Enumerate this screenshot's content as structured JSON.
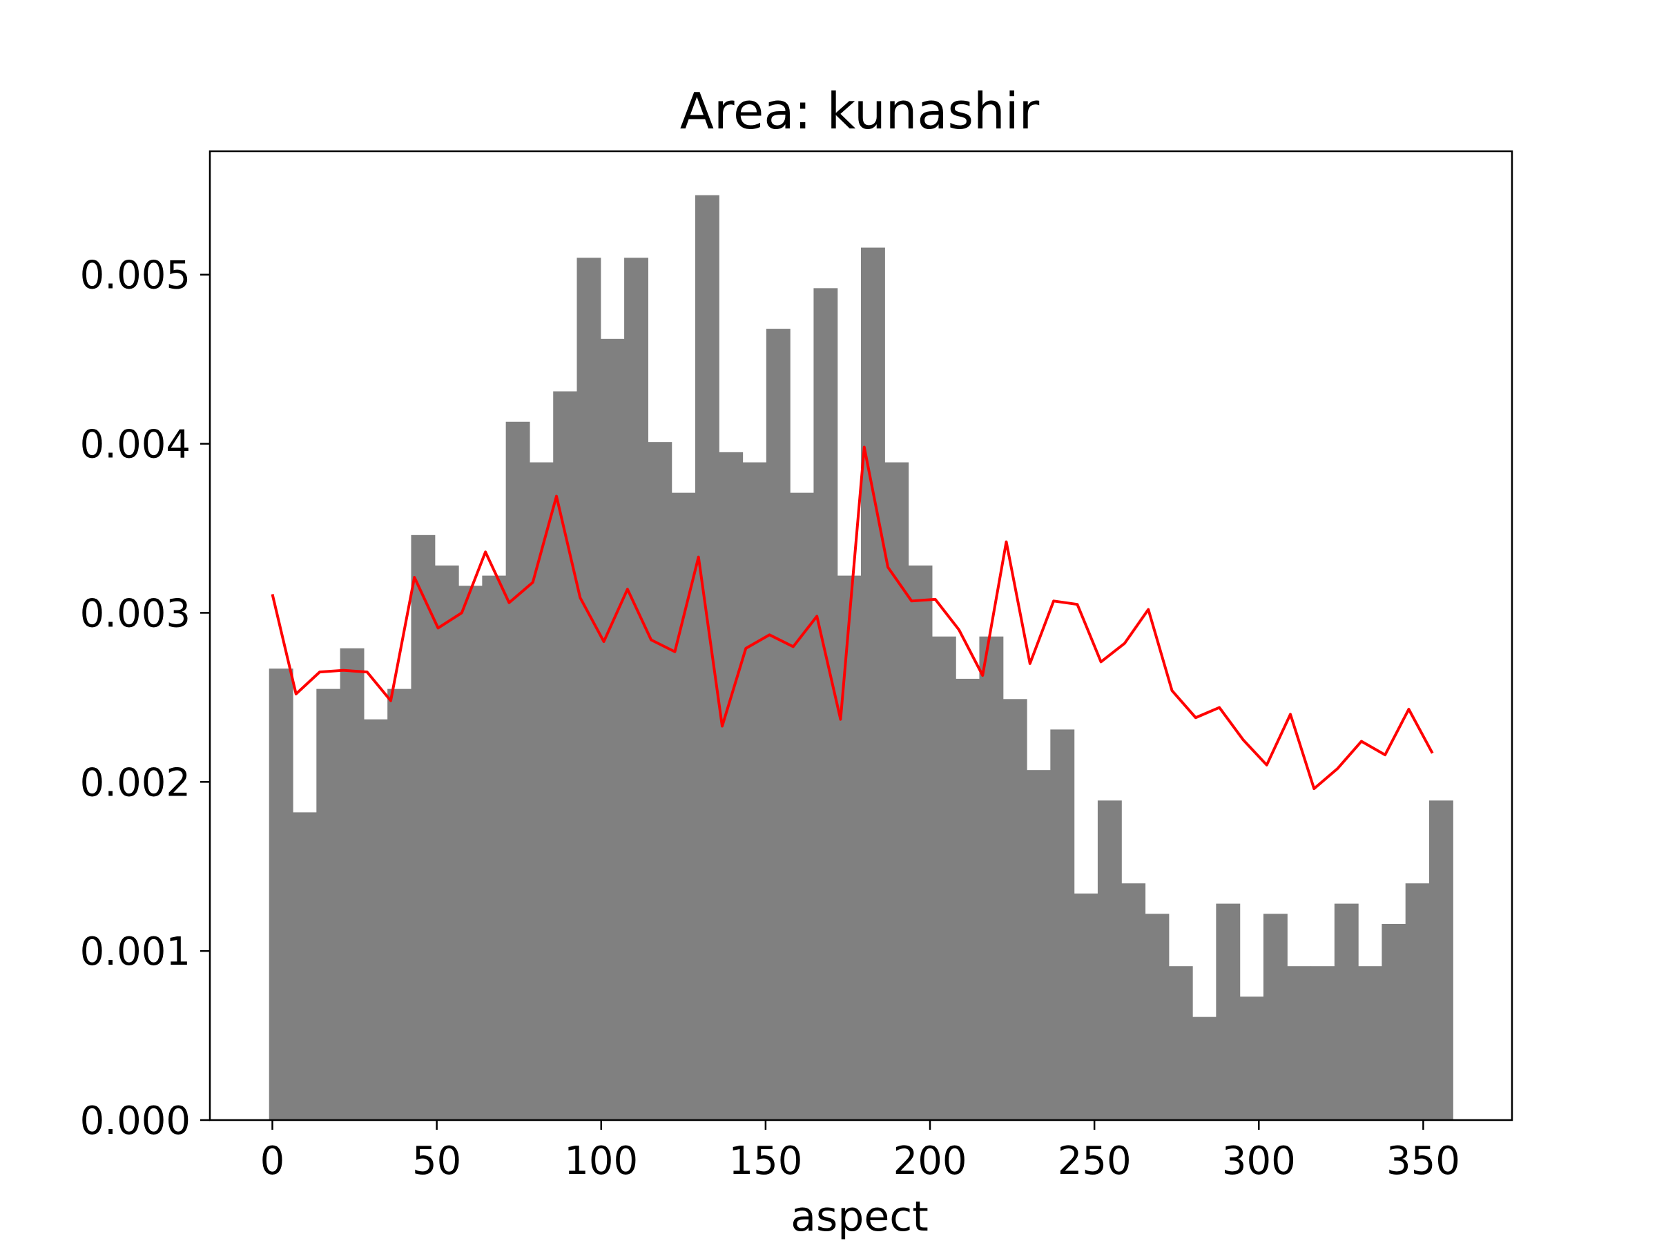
{
  "chart_data": {
    "type": "bar",
    "title": "Area: kunashir",
    "xlabel": "aspect",
    "ylabel": "",
    "xlim": [
      -19,
      377
    ],
    "ylim": [
      0,
      0.00573
    ],
    "xticks": [
      {
        "value": 0,
        "label": "0"
      },
      {
        "value": 50,
        "label": "50"
      },
      {
        "value": 100,
        "label": "100"
      },
      {
        "value": 150,
        "label": "150"
      },
      {
        "value": 200,
        "label": "200"
      },
      {
        "value": 250,
        "label": "250"
      },
      {
        "value": 300,
        "label": "300"
      },
      {
        "value": 350,
        "label": "350"
      }
    ],
    "yticks": [
      {
        "value": 0,
        "label": "0.000"
      },
      {
        "value": 0.001,
        "label": "0.001"
      },
      {
        "value": 0.002,
        "label": "0.002"
      },
      {
        "value": 0.003,
        "label": "0.003"
      },
      {
        "value": 0.004,
        "label": "0.004"
      },
      {
        "value": 0.005,
        "label": "0.005"
      }
    ],
    "grid": false,
    "legend": "none",
    "colors": {
      "bars": "#808080",
      "line": "#ff0000",
      "axes": "#000000"
    },
    "histogram": {
      "bin_start": -1,
      "bin_width": 7.2,
      "values": [
        0.00267,
        0.00182,
        0.00255,
        0.00279,
        0.00237,
        0.00255,
        0.00346,
        0.00328,
        0.00316,
        0.00322,
        0.00413,
        0.00389,
        0.00431,
        0.0051,
        0.00462,
        0.0051,
        0.00401,
        0.00371,
        0.00547,
        0.00395,
        0.00389,
        0.00468,
        0.00371,
        0.00492,
        0.00322,
        0.00516,
        0.00389,
        0.00328,
        0.00286,
        0.00261,
        0.00286,
        0.00249,
        0.00207,
        0.00231,
        0.00134,
        0.00189,
        0.0014,
        0.00122,
        0.00091,
        0.00061,
        0.00128,
        0.00073,
        0.00122,
        0.00091,
        0.00091,
        0.00128,
        0.00091,
        0.00116,
        0.0014,
        0.00189
      ]
    },
    "line": {
      "x": [
        0,
        7.2,
        14.4,
        21.6,
        28.8,
        36,
        43.2,
        50.4,
        57.6,
        64.8,
        72,
        79.2,
        86.4,
        93.6,
        100.8,
        108,
        115.2,
        122.4,
        129.6,
        136.8,
        144,
        151.2,
        158.4,
        165.6,
        172.8,
        180,
        187.2,
        194.4,
        201.6,
        208.8,
        216,
        223.2,
        230.4,
        237.6,
        244.8,
        252,
        259.2,
        266.4,
        273.6,
        280.8,
        288,
        295.2,
        302.4,
        309.6,
        316.8,
        324,
        331.2,
        338.4,
        345.6,
        352.8
      ],
      "y": [
        0.00311,
        0.00252,
        0.00265,
        0.00266,
        0.00265,
        0.00248,
        0.00321,
        0.00291,
        0.003,
        0.00336,
        0.00306,
        0.00318,
        0.00369,
        0.00309,
        0.00283,
        0.00314,
        0.00284,
        0.00277,
        0.00333,
        0.00233,
        0.00279,
        0.00287,
        0.0028,
        0.00298,
        0.00237,
        0.00398,
        0.00327,
        0.00307,
        0.00308,
        0.0029,
        0.00263,
        0.00342,
        0.0027,
        0.00307,
        0.00305,
        0.00271,
        0.00282,
        0.00302,
        0.00254,
        0.00238,
        0.00244,
        0.00225,
        0.0021,
        0.0024,
        0.00196,
        0.00208,
        0.00224,
        0.00216,
        0.00243,
        0.00217
      ]
    }
  }
}
